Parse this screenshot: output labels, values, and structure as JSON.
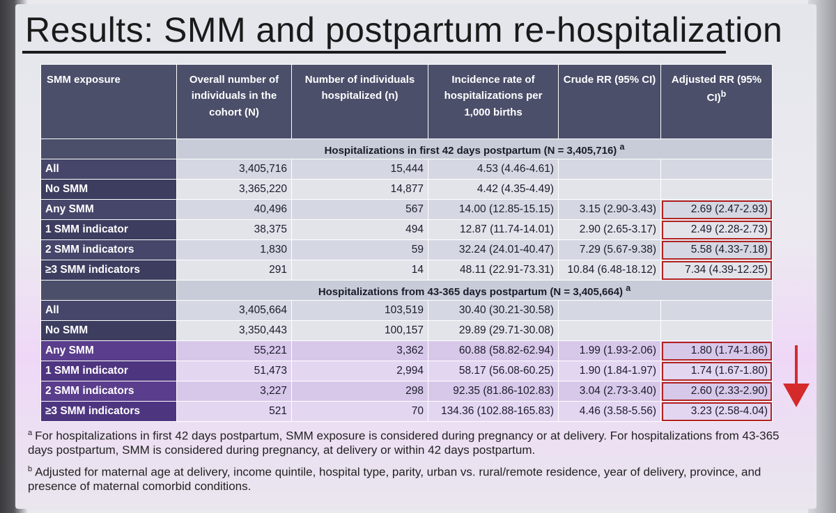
{
  "slide": {
    "title": "Results: SMM and postpartum re-hospitalization"
  },
  "table": {
    "headers": {
      "exposure": "SMM exposure",
      "overall": "Overall number of individuals in the cohort (N)",
      "hospitalized": "Number of individuals hospitalized (n)",
      "incidence": "Incidence rate of hospitalizations per 1,000 births",
      "crude": "Crude RR (95% CI)",
      "adjusted": "Adjusted RR (95% CI)",
      "adjusted_mark": "b"
    },
    "section1": {
      "title": "Hospitalizations in first 42 days postpartum (N = 3,405,716)",
      "mark": "a",
      "rows": [
        {
          "label": "All",
          "N": "3,405,716",
          "n": "15,444",
          "incidence": "4.53 (4.46-4.61)",
          "crude": "",
          "adjusted": ""
        },
        {
          "label": "No SMM",
          "N": "3,365,220",
          "n": "14,877",
          "incidence": "4.42 (4.35-4.49)",
          "crude": "",
          "adjusted": ""
        },
        {
          "label": "Any SMM",
          "N": "40,496",
          "n": "567",
          "incidence": "14.00 (12.85-15.15)",
          "crude": "3.15 (2.90-3.43)",
          "adjusted": "2.69 (2.47-2.93)"
        },
        {
          "label": "1 SMM indicator",
          "N": "38,375",
          "n": "494",
          "incidence": "12.87 (11.74-14.01)",
          "crude": "2.90 (2.65-3.17)",
          "adjusted": "2.49 (2.28-2.73)"
        },
        {
          "label": "2 SMM indicators",
          "N": "1,830",
          "n": "59",
          "incidence": "32.24 (24.01-40.47)",
          "crude": "7.29 (5.67-9.38)",
          "adjusted": "5.58 (4.33-7.18)"
        },
        {
          "label": "≥3 SMM indicators",
          "N": "291",
          "n": "14",
          "incidence": "48.11 (22.91-73.31)",
          "crude": "10.84 (6.48-18.12)",
          "adjusted": "7.34 (4.39-12.25)"
        }
      ]
    },
    "section2": {
      "title": "Hospitalizations from 43-365 days postpartum (N = 3,405,664)",
      "mark": "a",
      "rows": [
        {
          "label": "All",
          "N": "3,405,664",
          "n": "103,519",
          "incidence": "30.40 (30.21-30.58)",
          "crude": "",
          "adjusted": ""
        },
        {
          "label": "No SMM",
          "N": "3,350,443",
          "n": "100,157",
          "incidence": "29.89 (29.71-30.08)",
          "crude": "",
          "adjusted": ""
        },
        {
          "label": "Any SMM",
          "N": "55,221",
          "n": "3,362",
          "incidence": "60.88 (58.82-62.94)",
          "crude": "1.99 (1.93-2.06)",
          "adjusted": "1.80 (1.74-1.86)"
        },
        {
          "label": "1 SMM indicator",
          "N": "51,473",
          "n": "2,994",
          "incidence": "58.17 (56.08-60.25)",
          "crude": "1.90 (1.84-1.97)",
          "adjusted": "1.74 (1.67-1.80)"
        },
        {
          "label": "2 SMM indicators",
          "N": "3,227",
          "n": "298",
          "incidence": "92.35 (81.86-102.83)",
          "crude": "3.04 (2.73-3.40)",
          "adjusted": "2.60 (2.33-2.90)"
        },
        {
          "label": "≥3 SMM indicators",
          "N": "521",
          "n": "70",
          "incidence": "134.36 (102.88-165.83)",
          "crude": "4.46 (3.58-5.56)",
          "adjusted": "3.23 (2.58-4.04)"
        }
      ]
    }
  },
  "footnotes": {
    "a_mark": "a",
    "a_text": "For hospitalizations in first 42 days postpartum, SMM exposure is considered during pregnancy or at delivery. For hospitalizations from 43-365 days postpartum, SMM is considered during pregnancy, at delivery or within 42 days postpartum.",
    "b_mark": "b",
    "b_text": "Adjusted for maternal age at delivery, income quintile, hospital type, parity, urban vs. rural/remote residence, year of delivery, province, and presence of maternal comorbid conditions."
  },
  "colors": {
    "header_bg": "#4b4f6a",
    "highlight_box": "#b22222",
    "arrow": "#d42a2a"
  }
}
